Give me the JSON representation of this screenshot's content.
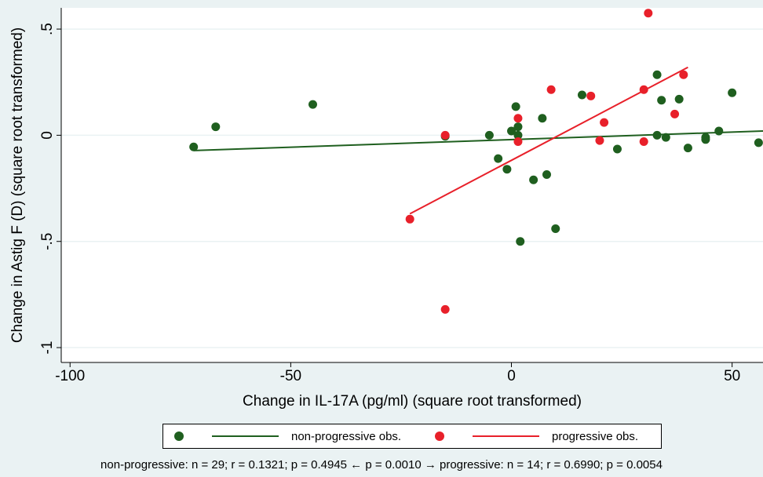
{
  "chart_data": {
    "type": "scatter",
    "xlabel": "Change in IL-17A (pg/ml) (square root transformed)",
    "ylabel": "Change in Astig F (D) (square root transformed)",
    "xlim": [
      -102,
      57
    ],
    "ylim": [
      -1.07,
      0.6
    ],
    "x_ticks": [
      -100,
      -50,
      0,
      50
    ],
    "x_tick_labels": [
      "-100",
      "-50",
      "0",
      "50"
    ],
    "y_ticks": [
      -1,
      -0.5,
      0,
      0.5
    ],
    "y_tick_labels": [
      "-1",
      "-.5",
      "0",
      ".5"
    ],
    "grid": true,
    "series": [
      {
        "name": "non-progressive obs.",
        "color": "#1f5f1f",
        "points": [
          [
            -72,
            -0.055
          ],
          [
            -67,
            0.04
          ],
          [
            -45,
            0.145
          ],
          [
            -15,
            -0.005
          ],
          [
            -5,
            0.0
          ],
          [
            -3,
            -0.11
          ],
          [
            -1,
            -0.16
          ],
          [
            0,
            0.02
          ],
          [
            1,
            0.135
          ],
          [
            1.5,
            0.04
          ],
          [
            1.5,
            0.0
          ],
          [
            2,
            -0.5
          ],
          [
            5,
            -0.21
          ],
          [
            7,
            0.08
          ],
          [
            8,
            -0.185
          ],
          [
            10,
            -0.44
          ],
          [
            16,
            0.19
          ],
          [
            24,
            -0.065
          ],
          [
            33,
            0.285
          ],
          [
            33,
            0.0
          ],
          [
            34,
            0.165
          ],
          [
            35,
            -0.01
          ],
          [
            38,
            0.17
          ],
          [
            40,
            -0.06
          ],
          [
            44,
            -0.01
          ],
          [
            44,
            -0.02
          ],
          [
            47,
            0.02
          ],
          [
            50,
            0.2
          ],
          [
            56,
            -0.035
          ]
        ],
        "fit": [
          [
            -72,
            -0.072
          ],
          [
            57,
            0.02
          ]
        ]
      },
      {
        "name": "progressive obs.",
        "color": "#e8202a",
        "points": [
          [
            -23,
            -0.395
          ],
          [
            -15,
            0.0
          ],
          [
            -15,
            -0.82
          ],
          [
            1.5,
            0.08
          ],
          [
            1.5,
            -0.03
          ],
          [
            9,
            0.215
          ],
          [
            18,
            0.185
          ],
          [
            20,
            -0.025
          ],
          [
            21,
            0.06
          ],
          [
            30,
            0.215
          ],
          [
            31,
            0.575
          ],
          [
            37,
            0.1
          ],
          [
            30,
            -0.03
          ],
          [
            39,
            0.285
          ]
        ],
        "fit": [
          [
            -23,
            -0.37
          ],
          [
            40,
            0.32
          ]
        ]
      }
    ],
    "legend": {
      "position": "bottom",
      "items": [
        {
          "label": "non-progressive obs.",
          "color": "#1f5f1f"
        },
        {
          "label": "progressive obs.",
          "color": "#e8202a"
        }
      ]
    },
    "footnote": "non-progressive: n = 29; r = 0.1321; p = 0.4945  ← p = 0.0010 →  progressive: n = 14; r = 0.6990; p = 0.0054"
  }
}
